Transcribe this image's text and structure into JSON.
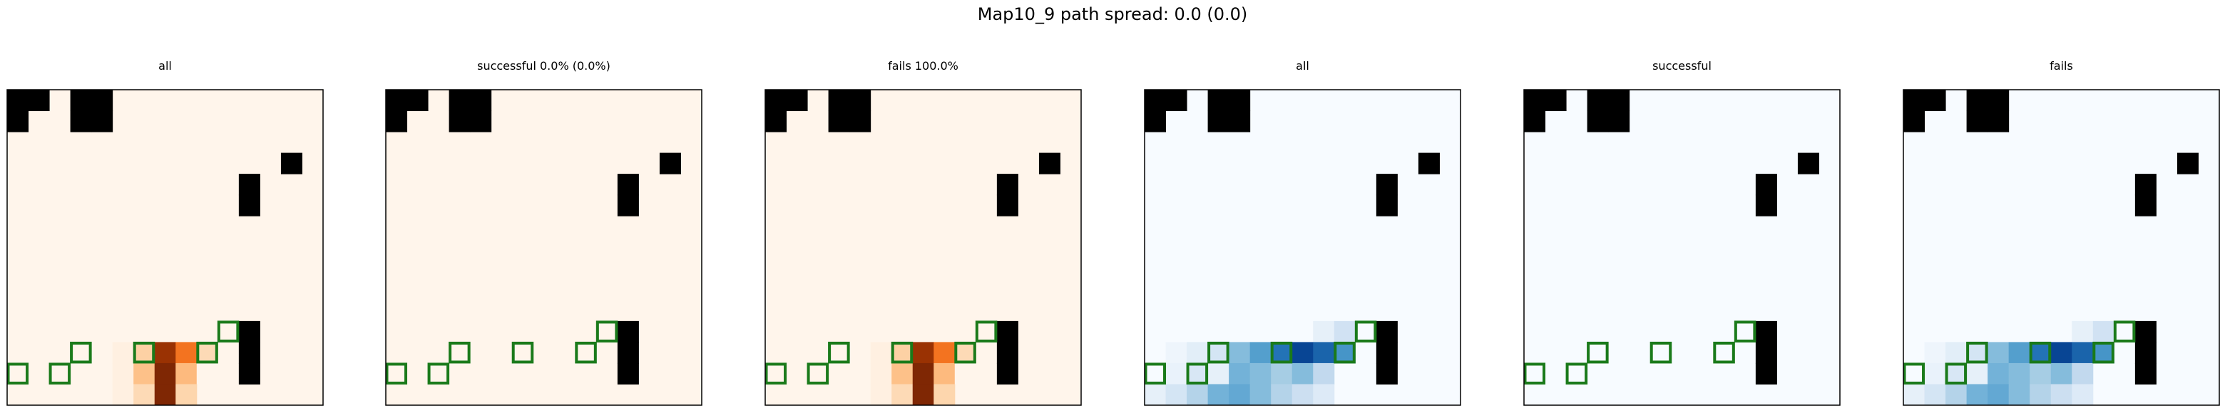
{
  "figure": {
    "title": "Map10_9 path spread: 0.0 (0.0)"
  },
  "grid": {
    "rows": 15,
    "cols": 15,
    "walls": [
      "110110000000000",
      "100110000000000",
      "000000000000000",
      "000000000000010",
      "000000000001000",
      "000000000001000",
      "000000000000000",
      "000000000000000",
      "000000000000000",
      "000000000000000",
      "000000000000000",
      "000000000001000",
      "000000000001000",
      "000000000001000",
      "000000000000000"
    ],
    "highlights": [
      [
        12,
        3
      ],
      [
        13,
        0
      ],
      [
        13,
        2
      ],
      [
        12,
        9
      ],
      [
        11,
        10
      ],
      [
        12,
        6
      ]
    ]
  },
  "chart_data": [
    {
      "type": "heatmap",
      "title": "all",
      "colormap": "Oranges",
      "vmax": 1.0,
      "cells": [
        [
          12,
          5,
          0.05
        ],
        [
          12,
          6,
          0.28
        ],
        [
          12,
          7,
          0.9
        ],
        [
          12,
          8,
          0.55
        ],
        [
          12,
          9,
          0.22
        ],
        [
          13,
          5,
          0.05
        ],
        [
          13,
          6,
          0.35
        ],
        [
          13,
          7,
          1.0
        ],
        [
          13,
          8,
          0.38
        ],
        [
          13,
          9,
          0.0
        ],
        [
          14,
          5,
          0.05
        ],
        [
          14,
          6,
          0.22
        ],
        [
          14,
          7,
          1.0
        ],
        [
          14,
          8,
          0.25
        ]
      ]
    },
    {
      "type": "heatmap",
      "title": "successful 0.0% (0.0%)",
      "colormap": "Oranges",
      "vmax": 1.0,
      "cells": []
    },
    {
      "type": "heatmap",
      "title": "fails 100.0%",
      "colormap": "Oranges",
      "vmax": 1.0,
      "cells": [
        [
          12,
          5,
          0.05
        ],
        [
          12,
          6,
          0.28
        ],
        [
          12,
          7,
          0.9
        ],
        [
          12,
          8,
          0.55
        ],
        [
          12,
          9,
          0.22
        ],
        [
          13,
          5,
          0.05
        ],
        [
          13,
          6,
          0.35
        ],
        [
          13,
          7,
          1.0
        ],
        [
          13,
          8,
          0.38
        ],
        [
          13,
          9,
          0.0
        ],
        [
          14,
          5,
          0.05
        ],
        [
          14,
          6,
          0.22
        ],
        [
          14,
          7,
          1.0
        ],
        [
          14,
          8,
          0.25
        ]
      ]
    },
    {
      "type": "heatmap",
      "title": "all",
      "colormap": "Blues",
      "vmax": 1.0,
      "cells": [
        [
          11,
          8,
          0.1
        ],
        [
          11,
          9,
          0.22
        ],
        [
          12,
          1,
          0.05
        ],
        [
          12,
          2,
          0.12
        ],
        [
          12,
          3,
          0.2
        ],
        [
          12,
          4,
          0.5
        ],
        [
          12,
          5,
          0.65
        ],
        [
          12,
          6,
          0.85
        ],
        [
          12,
          7,
          1.0
        ],
        [
          12,
          8,
          0.9
        ],
        [
          12,
          9,
          0.7
        ],
        [
          13,
          1,
          0.08
        ],
        [
          13,
          2,
          0.18
        ],
        [
          13,
          3,
          0.1
        ],
        [
          13,
          4,
          0.55
        ],
        [
          13,
          5,
          0.5
        ],
        [
          13,
          6,
          0.4
        ],
        [
          13,
          7,
          0.5
        ],
        [
          13,
          8,
          0.3
        ],
        [
          14,
          0,
          0.1
        ],
        [
          14,
          1,
          0.2
        ],
        [
          14,
          2,
          0.35
        ],
        [
          14,
          3,
          0.55
        ],
        [
          14,
          4,
          0.6
        ],
        [
          14,
          5,
          0.5
        ],
        [
          14,
          6,
          0.35
        ],
        [
          14,
          7,
          0.25
        ],
        [
          14,
          8,
          0.15
        ]
      ]
    },
    {
      "type": "heatmap",
      "title": "successful",
      "colormap": "Blues",
      "vmax": 1.0,
      "cells": []
    },
    {
      "type": "heatmap",
      "title": "fails",
      "colormap": "Blues",
      "vmax": 1.0,
      "cells": [
        [
          11,
          8,
          0.1
        ],
        [
          11,
          9,
          0.22
        ],
        [
          12,
          1,
          0.05
        ],
        [
          12,
          2,
          0.12
        ],
        [
          12,
          3,
          0.2
        ],
        [
          12,
          4,
          0.5
        ],
        [
          12,
          5,
          0.65
        ],
        [
          12,
          6,
          0.85
        ],
        [
          12,
          7,
          1.0
        ],
        [
          12,
          8,
          0.9
        ],
        [
          12,
          9,
          0.7
        ],
        [
          13,
          1,
          0.08
        ],
        [
          13,
          2,
          0.18
        ],
        [
          13,
          3,
          0.1
        ],
        [
          13,
          4,
          0.55
        ],
        [
          13,
          5,
          0.5
        ],
        [
          13,
          6,
          0.4
        ],
        [
          13,
          7,
          0.5
        ],
        [
          13,
          8,
          0.3
        ],
        [
          14,
          0,
          0.1
        ],
        [
          14,
          1,
          0.2
        ],
        [
          14,
          2,
          0.35
        ],
        [
          14,
          3,
          0.55
        ],
        [
          14,
          4,
          0.6
        ],
        [
          14,
          5,
          0.5
        ],
        [
          14,
          6,
          0.35
        ],
        [
          14,
          7,
          0.25
        ],
        [
          14,
          8,
          0.15
        ]
      ]
    }
  ],
  "colors": {
    "wall": "#000000",
    "highlight": "#1a7a1a",
    "frame": "#000000"
  }
}
